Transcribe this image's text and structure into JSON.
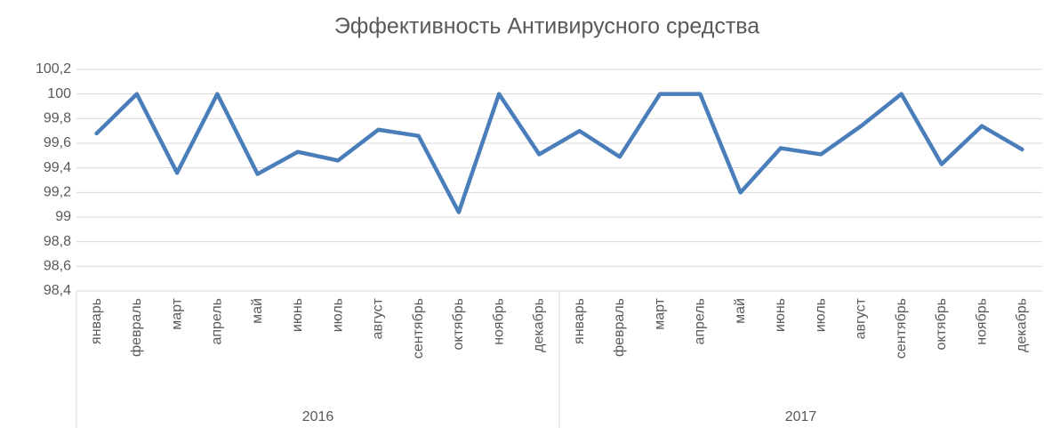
{
  "chart_data": {
    "type": "line",
    "title": "Эффективность Антивирусного средства",
    "categories": [
      "январь",
      "февраль",
      "март",
      "апрель",
      "май",
      "июнь",
      "июль",
      "август",
      "сентябрь",
      "октябрь",
      "ноябрь",
      "декабрь",
      "январь",
      "февраль",
      "март",
      "апрель",
      "май",
      "июнь",
      "июль",
      "август",
      "сентябрь",
      "октябрь",
      "ноябрь",
      "декабрь"
    ],
    "category_groups": [
      "2016",
      "2017"
    ],
    "series": [
      {
        "name": "Эффективность",
        "color": "#4a7ebb",
        "values": [
          99.68,
          100,
          99.36,
          100,
          99.35,
          99.53,
          99.46,
          99.71,
          99.66,
          99.04,
          100,
          99.51,
          99.7,
          99.49,
          100,
          100,
          99.2,
          99.56,
          99.51,
          99.74,
          100,
          99.43,
          99.74,
          99.55
        ]
      }
    ],
    "ylim": [
      98.4,
      100.2
    ],
    "yticks": [
      {
        "value": 98.4,
        "label": "98,4"
      },
      {
        "value": 98.6,
        "label": "98,6"
      },
      {
        "value": 98.8,
        "label": "98,8"
      },
      99,
      {
        "value": 99.2,
        "label": "99,2"
      },
      {
        "value": 99.4,
        "label": "99,4"
      },
      {
        "value": 99.6,
        "label": "99,6"
      },
      {
        "value": 99.8,
        "label": "99,8"
      },
      100,
      {
        "value": 100.2,
        "label": "100,2"
      }
    ],
    "grid": true
  }
}
